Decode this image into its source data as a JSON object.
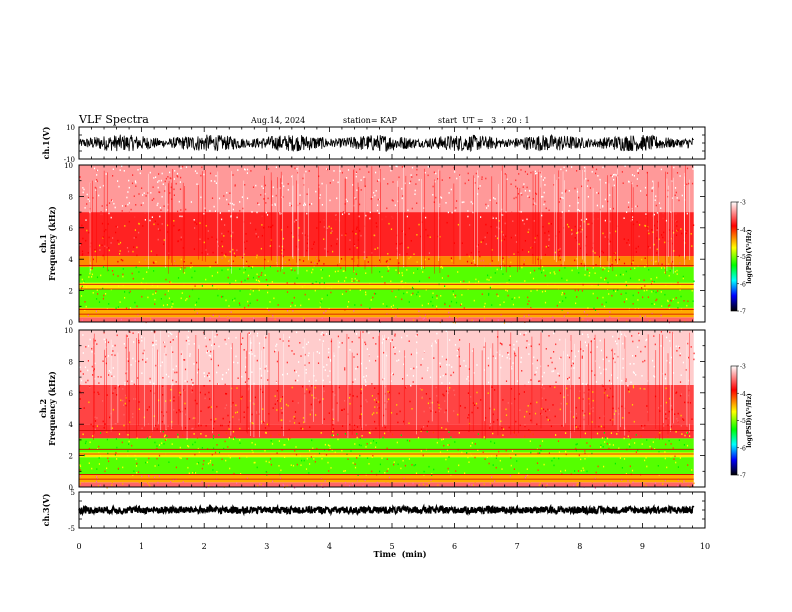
{
  "header": {
    "title": "VLF Spectra",
    "date": "Aug.14, 2024",
    "station": "station= KAP",
    "start": "start  UT =   3  : 20 : 1"
  },
  "chart_data": [
    {
      "id": "ch1-waveform",
      "type": "line",
      "ylabel": "ch.1(V)",
      "ylim": [
        -10,
        10
      ],
      "yticks": [
        "10",
        "-10"
      ],
      "xlim": [
        0,
        10
      ],
      "data_extent_min": 9.82,
      "description_values": {
        "baseline_V": 0,
        "amplitude_V": 7
      },
      "color": "#000000"
    },
    {
      "id": "ch1-spectrogram",
      "type": "heatmap",
      "ylabel": "ch.1\nFrequency (kHz)",
      "ylabel_lines": [
        "ch.1",
        "Frequency  (kHz)"
      ],
      "ylim": [
        0,
        10
      ],
      "yticks": [
        "0",
        "2",
        "4",
        "6",
        "8",
        "10"
      ],
      "xlim": [
        0,
        10
      ],
      "colorbar": {
        "label": "log(PSD)(V²/Hz)",
        "range": [
          -7,
          -3
        ],
        "ticks": [
          "-3",
          "-4",
          "-5",
          "-6",
          "-7"
        ],
        "colors": [
          "#ffffff",
          "#ff0000",
          "#ffff00",
          "#00ff00",
          "#00ffff",
          "#0000ff",
          "#000000"
        ]
      },
      "bands_khz": [
        {
          "from": 0.0,
          "to": 0.3,
          "color": "#ff6666"
        },
        {
          "from": 0.3,
          "to": 0.9,
          "color": "#ffaa00"
        },
        {
          "from": 0.9,
          "to": 2.1,
          "color": "#55ff00"
        },
        {
          "from": 2.1,
          "to": 2.5,
          "color": "#ffee00"
        },
        {
          "from": 2.5,
          "to": 3.5,
          "color": "#55ff00"
        },
        {
          "from": 3.5,
          "to": 4.2,
          "color": "#ff8800"
        },
        {
          "from": 4.2,
          "to": 7.0,
          "color": "#ff2222"
        },
        {
          "from": 7.0,
          "to": 10.0,
          "color": "#ff9999"
        }
      ]
    },
    {
      "id": "ch2-spectrogram",
      "type": "heatmap",
      "ylabel": "ch.2\nFrequency (kHz)",
      "ylabel_lines": [
        "ch.2",
        "Frequency  (kHz)"
      ],
      "ylim": [
        0,
        10
      ],
      "yticks": [
        "0",
        "2",
        "4",
        "6",
        "8",
        "10"
      ],
      "xlim": [
        0,
        10
      ],
      "colorbar": {
        "label": "log(PSD)(V²/Hz)",
        "range": [
          -7,
          -3
        ],
        "ticks": [
          "-3",
          "-4",
          "-5",
          "-6",
          "-7"
        ],
        "colors": [
          "#ffffff",
          "#ff0000",
          "#ffff00",
          "#00ff00",
          "#00ffff",
          "#0000ff",
          "#000000"
        ]
      },
      "bands_khz": [
        {
          "from": 0.0,
          "to": 0.3,
          "color": "#ff6666"
        },
        {
          "from": 0.3,
          "to": 0.8,
          "color": "#ffaa00"
        },
        {
          "from": 0.8,
          "to": 1.9,
          "color": "#55ff00"
        },
        {
          "from": 1.9,
          "to": 2.2,
          "color": "#ffee00"
        },
        {
          "from": 2.2,
          "to": 3.1,
          "color": "#55ff00"
        },
        {
          "from": 3.1,
          "to": 4.0,
          "color": "#ff3333"
        },
        {
          "from": 4.0,
          "to": 6.5,
          "color": "#ff4444"
        },
        {
          "from": 6.5,
          "to": 10.0,
          "color": "#ffcccc"
        }
      ]
    },
    {
      "id": "ch3-waveform",
      "type": "line",
      "ylabel": "ch.3(V)",
      "ylim": [
        -5,
        5
      ],
      "yticks": [
        "5",
        "-5"
      ],
      "xlim": [
        0,
        10
      ],
      "data_extent_min": 9.82,
      "description_values": {
        "baseline_V": 0,
        "amplitude_V": 1
      },
      "color": "#000000"
    }
  ],
  "xaxis": {
    "label": "Time  (min)",
    "ticks": [
      "0",
      "1",
      "2",
      "3",
      "4",
      "5",
      "6",
      "7",
      "8",
      "9",
      "10"
    ]
  }
}
